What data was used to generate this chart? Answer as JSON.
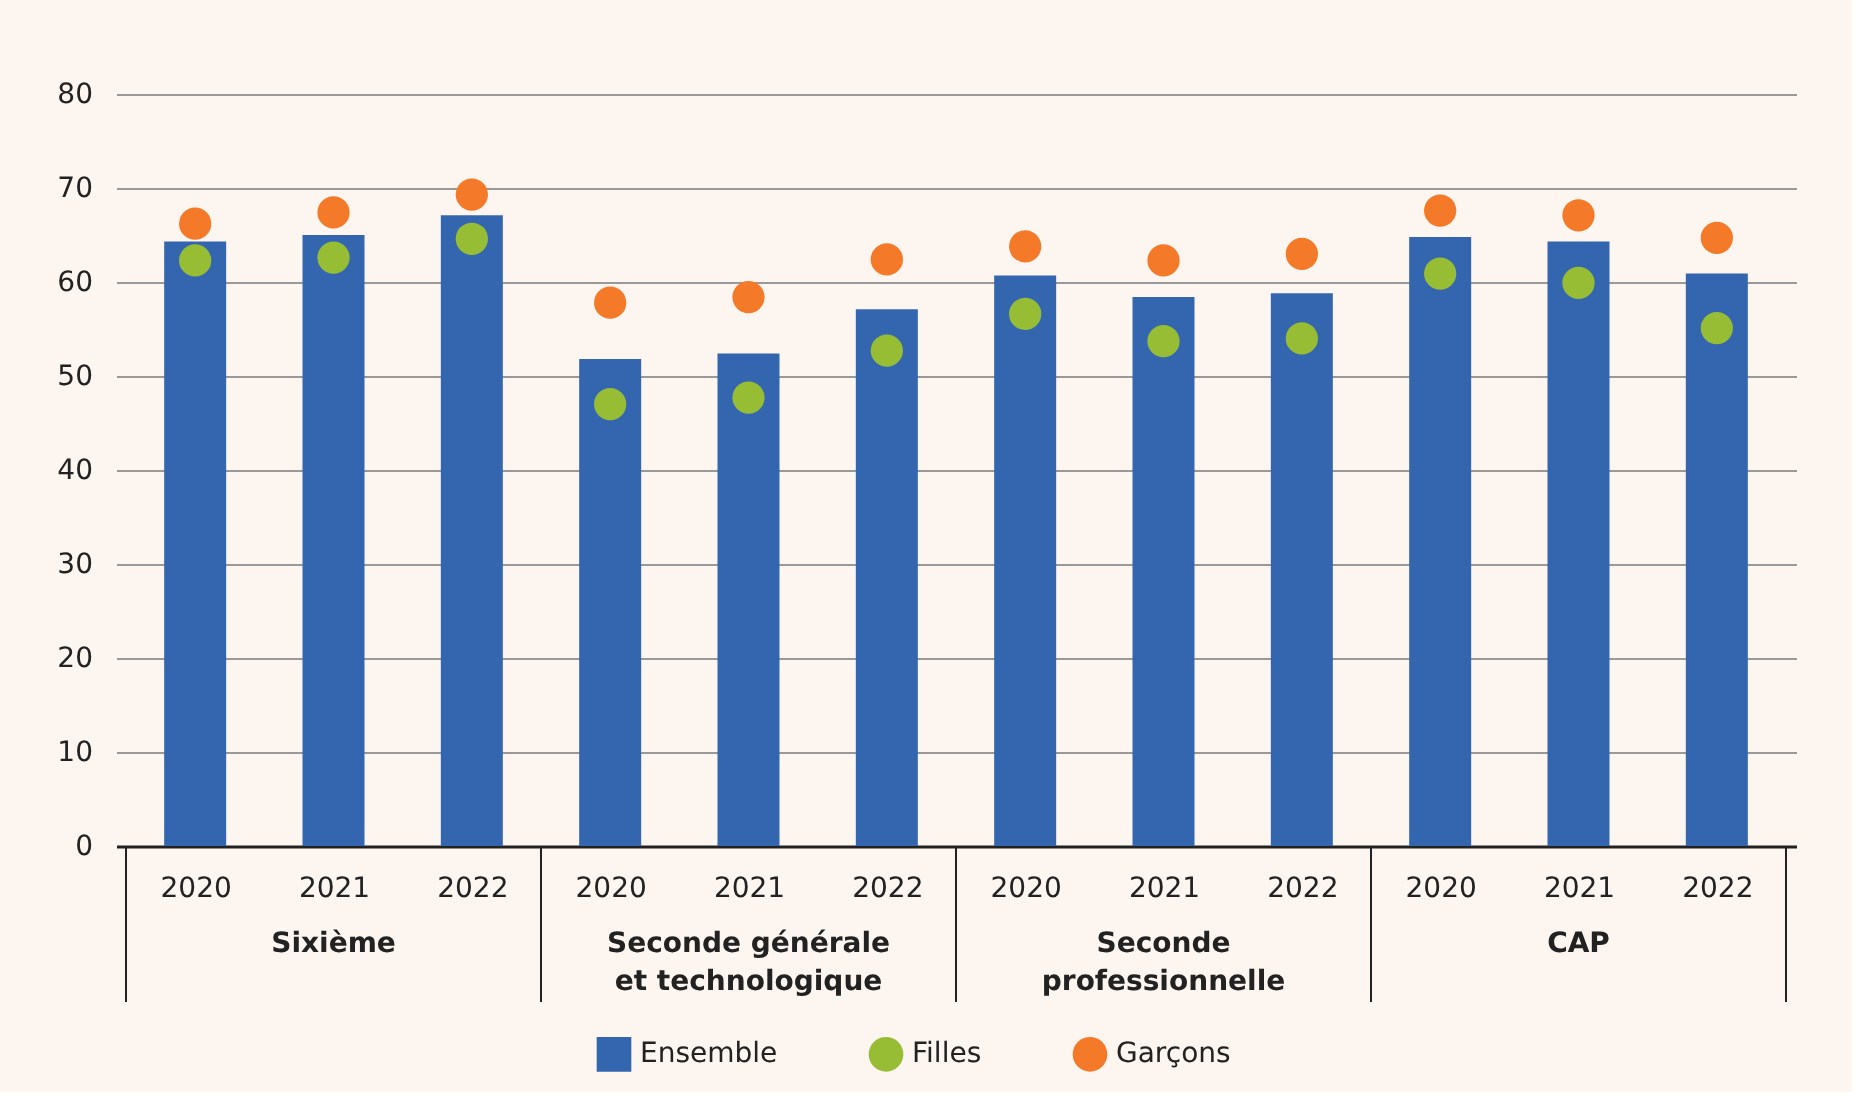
{
  "chart_data": {
    "type": "bar",
    "categories": [
      "2020",
      "2021",
      "2022",
      "2020",
      "2021",
      "2022",
      "2020",
      "2021",
      "2022",
      "2020",
      "2021",
      "2022"
    ],
    "annotations": [
      "Sixième",
      "Seconde générale\net technologique",
      "Seconde\nprofessionnelle",
      "CAP"
    ],
    "series": [
      {
        "name": "Ensemble",
        "color": "#3466b0",
        "values": [
          64.3,
          65.0,
          67.1,
          51.8,
          52.4,
          57.1,
          60.7,
          58.4,
          58.8,
          64.8,
          64.3,
          60.9
        ]
      },
      {
        "name": "Filles",
        "type": "scatter",
        "marker": "circle",
        "color": "#97bd35",
        "values": [
          62.3,
          62.6,
          64.6,
          47.0,
          47.7,
          52.7,
          56.6,
          53.7,
          54.0,
          60.9,
          59.9,
          55.1
        ]
      },
      {
        "name": "Garçons",
        "type": "scatter",
        "marker": "circle",
        "color": "#f47a2a",
        "values": [
          66.2,
          67.4,
          69.3,
          57.8,
          58.4,
          62.4,
          63.8,
          62.3,
          63.0,
          67.6,
          67.1,
          64.7
        ]
      }
    ],
    "ylim": [
      0,
      80
    ],
    "yticks": [
      0,
      10,
      20,
      30,
      40,
      50,
      60,
      70,
      80
    ],
    "grid": "y",
    "legend": "bottom"
  }
}
